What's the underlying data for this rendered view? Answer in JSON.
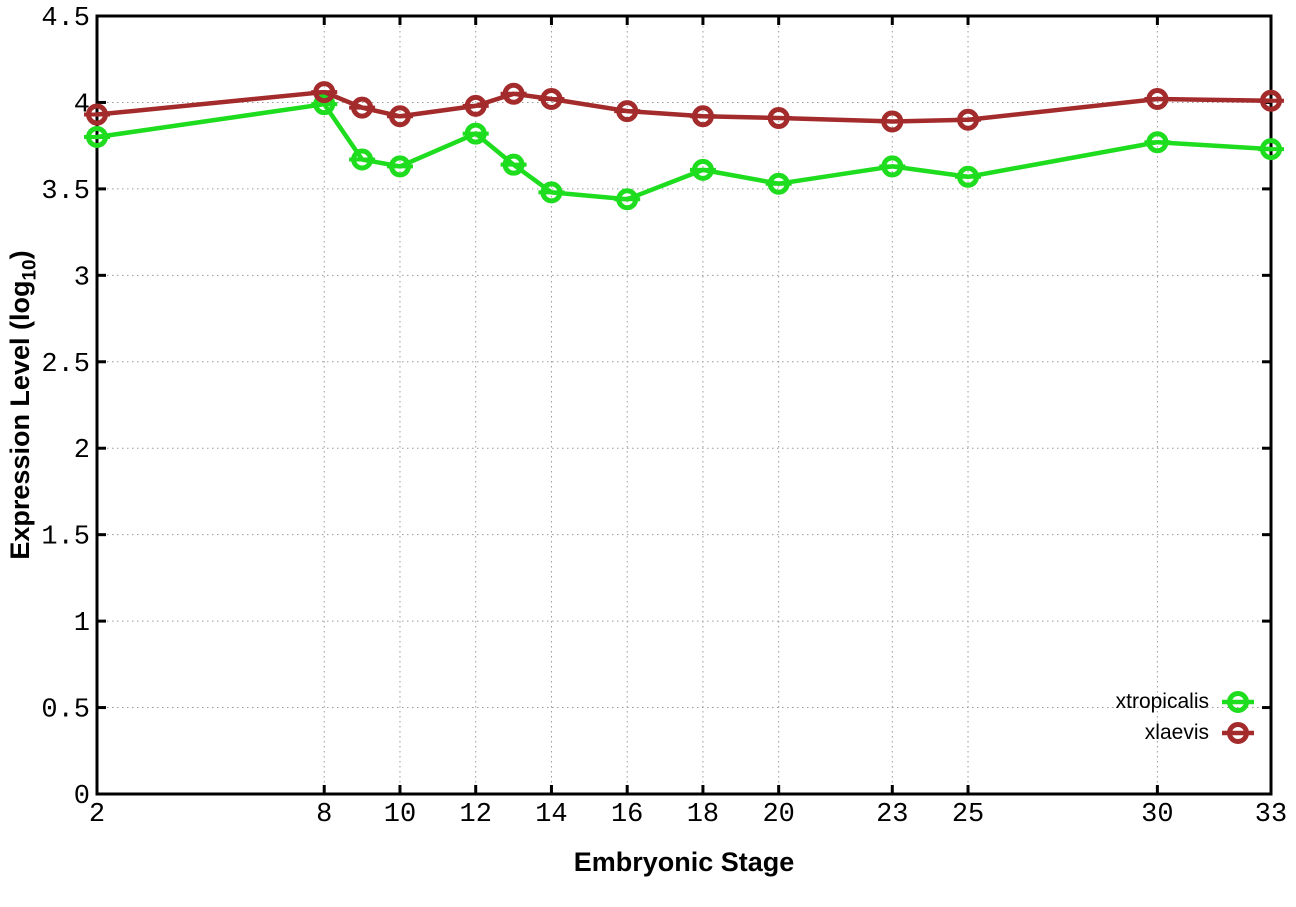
{
  "chart_data": {
    "type": "line",
    "title": "",
    "xlabel": "Embryonic Stage",
    "ylabel": "Expression Level (log10)",
    "ylabel_parts": {
      "main": "Expression Level (log",
      "sub": "10",
      "close": ")"
    },
    "xlim": [
      2,
      33
    ],
    "ylim": [
      0,
      4.5
    ],
    "xticks": [
      2,
      8,
      10,
      12,
      14,
      16,
      18,
      20,
      23,
      25,
      30,
      33
    ],
    "xtick_labels": [
      "2",
      "8",
      "10",
      "12",
      "14",
      "16",
      "18",
      "20",
      "23",
      "25",
      "30",
      "33"
    ],
    "yticks": [
      0,
      0.5,
      1,
      1.5,
      2,
      2.5,
      3,
      3.5,
      4,
      4.5
    ],
    "ytick_labels": [
      "0",
      "0.5",
      "1",
      "1.5",
      "2",
      "2.5",
      "3",
      "3.5",
      "4",
      "4.5"
    ],
    "grid": true,
    "grid_style": "dotted",
    "legend_position": "bottom-right",
    "marker": "open-circle-with-errorbar-cap",
    "colors": {
      "axis": "#000000",
      "grid": "#9a9a9a",
      "background": "#ffffff"
    },
    "x": [
      2,
      8,
      9,
      10,
      12,
      13,
      14,
      16,
      18,
      20,
      23,
      25,
      30,
      33
    ],
    "series": [
      {
        "name": "xtropicalis",
        "color": "#1edc1e",
        "values": [
          3.8,
          3.99,
          3.67,
          3.63,
          3.82,
          3.64,
          3.48,
          3.44,
          3.61,
          3.53,
          3.63,
          3.57,
          3.77,
          3.73
        ]
      },
      {
        "name": "xlaevis",
        "color": "#a32b2b",
        "values": [
          3.93,
          4.06,
          3.97,
          3.92,
          3.98,
          4.05,
          4.02,
          3.95,
          3.92,
          3.91,
          3.89,
          3.9,
          4.02,
          4.01
        ]
      }
    ]
  }
}
